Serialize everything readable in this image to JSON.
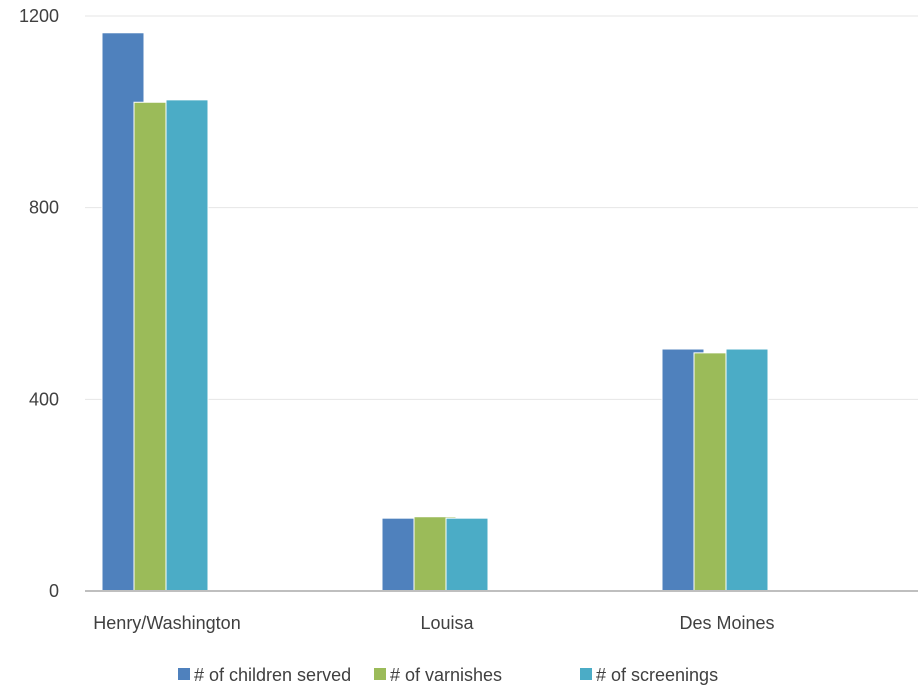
{
  "chart_data": {
    "type": "bar",
    "title": "",
    "xlabel": "",
    "ylabel": "",
    "categories": [
      "Henry/Washington",
      "Louisa",
      "Des Moines"
    ],
    "series": [
      {
        "name": "# of children served",
        "color": "#4f81bd",
        "values": [
          1165,
          152,
          505
        ]
      },
      {
        "name": "# of varnishes",
        "color": "#9bbb59",
        "values": [
          1020,
          155,
          497
        ]
      },
      {
        "name": "# of screenings",
        "color": "#4bacc6",
        "values": [
          1025,
          152,
          505
        ]
      }
    ],
    "ylim": [
      0,
      1200
    ],
    "yticks": [
      0,
      400,
      800,
      1200
    ],
    "grid": true,
    "legend_position": "bottom"
  }
}
